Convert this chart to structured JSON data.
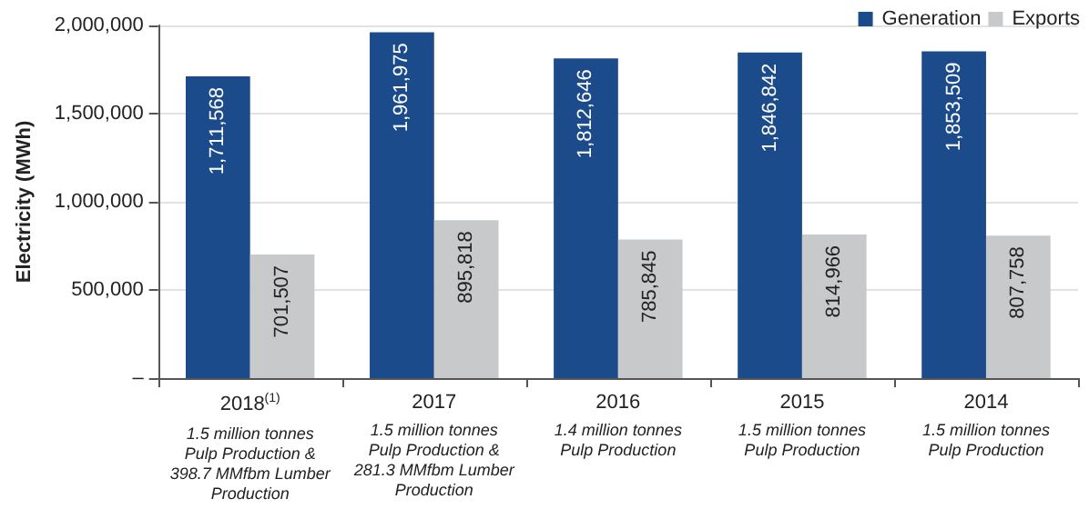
{
  "chart_data": {
    "type": "bar",
    "ylabel": "Electricity (MWh)",
    "categories": [
      "2018$^{(1)}$\n1.5 million tonnes Pulp Production & 398.7 MMfbm Lumber Production",
      "2017\n1.5 million tonnes Pulp Production & 281.3 MMfbm Lumber Production",
      "2016\n1.4 million tonnes Pulp Production",
      "2015\n1.5 million tonnes Pulp Production",
      "2014\n1.5 million tonnes Pulp Production"
    ],
    "series": [
      {
        "name": "Generation",
        "color": "#1c4b8c",
        "values": [
          1711568,
          1961975,
          1812646,
          1846842,
          1853509
        ],
        "value_labels": [
          "1,711,568",
          "1,961,975",
          "1,812,646",
          "1,846,842",
          "1,853,509"
        ]
      },
      {
        "name": "Exports",
        "color": "#c8c9cb",
        "values": [
          701507,
          895818,
          785845,
          814966,
          807758
        ],
        "value_labels": [
          "701,507",
          "895,818",
          "785,845",
          "814,966",
          "807,758"
        ]
      }
    ],
    "ylim": [
      0,
      2000000
    ],
    "yticks": [
      {
        "value": 0,
        "label": "–"
      },
      {
        "value": 500000,
        "label": "500,000"
      },
      {
        "value": 1000000,
        "label": "1,000,000"
      },
      {
        "value": 1500000,
        "label": "1,500,000"
      },
      {
        "value": 2000000,
        "label": "2,000,000"
      }
    ],
    "grid": "y",
    "legend": "top right"
  }
}
